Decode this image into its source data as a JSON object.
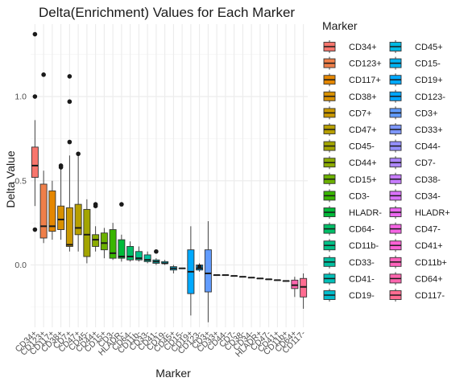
{
  "chart_data": {
    "type": "boxplot",
    "title": "Delta(Enrichment) Values for Each Marker",
    "xlabel": "Marker",
    "ylabel": "Delta Value",
    "ylim": [
      -0.37,
      1.43
    ],
    "yticks": [
      0.0,
      0.5,
      1.0
    ],
    "ytick_labels": [
      "0.0",
      "0.5",
      "1.0"
    ],
    "grid": true,
    "legend_position": "right",
    "legend_title": "Marker",
    "categories": [
      "CD34+",
      "CD123+",
      "CD117+",
      "CD38+",
      "CD7+",
      "CD47+",
      "CD45-",
      "CD44+",
      "CD15+",
      "CD3-",
      "HLADR-",
      "CD64-",
      "CD11b-",
      "CD33-",
      "CD41-",
      "CD19-",
      "CD45+",
      "CD15-",
      "CD19+",
      "CD123-",
      "CD3+",
      "CD33+",
      "CD44-",
      "CD7-",
      "CD38-",
      "CD34-",
      "HLADR+",
      "CD47-",
      "CD41+",
      "CD11b+",
      "CD64+",
      "CD117-"
    ],
    "colors": [
      "#F8766D",
      "#EF7F49",
      "#E58700",
      "#D89000",
      "#C99800",
      "#B79F00",
      "#A3A500",
      "#8BAB00",
      "#6BB100",
      "#39B600",
      "#00BA38",
      "#00BE67",
      "#00C086",
      "#00C0A0",
      "#00BFB8",
      "#00BCCC",
      "#00B9E3",
      "#00B3F2",
      "#00A9FF",
      "#00A5FF",
      "#619CFF",
      "#7D96FF",
      "#9590FF",
      "#AE87FF",
      "#C77CFF",
      "#DB72FB",
      "#EB68EF",
      "#F564E3",
      "#FC61D5",
      "#FF62BC",
      "#FF65AE",
      "#FF6C91"
    ],
    "series": [
      {
        "name": "CD34+",
        "min": 0.35,
        "q1": 0.52,
        "median": 0.59,
        "q3": 0.7,
        "max": 0.86,
        "outliers": [
          1.37,
          1.0,
          0.21
        ]
      },
      {
        "name": "CD123+",
        "min": 0.13,
        "q1": 0.16,
        "median": 0.23,
        "q3": 0.48,
        "max": 0.56,
        "outliers": [
          1.13
        ]
      },
      {
        "name": "CD117+",
        "min": 0.15,
        "q1": 0.2,
        "median": 0.23,
        "q3": 0.44,
        "max": 0.5,
        "outliers": []
      },
      {
        "name": "CD38+",
        "min": 0.15,
        "q1": 0.21,
        "median": 0.27,
        "q3": 0.35,
        "max": 0.57,
        "outliers": [
          0.59,
          0.58
        ]
      },
      {
        "name": "CD7+",
        "min": 0.08,
        "q1": 0.11,
        "median": 0.12,
        "q3": 0.34,
        "max": 0.65,
        "outliers": [
          1.12,
          0.97,
          0.73
        ]
      },
      {
        "name": "CD47+",
        "min": 0.08,
        "q1": 0.18,
        "median": 0.22,
        "q3": 0.36,
        "max": 0.66,
        "outliers": [
          0.66
        ]
      },
      {
        "name": "CD45-",
        "min": 0.01,
        "q1": 0.05,
        "median": 0.18,
        "q3": 0.33,
        "max": 0.39,
        "outliers": []
      },
      {
        "name": "CD44+",
        "min": 0.08,
        "q1": 0.11,
        "median": 0.15,
        "q3": 0.18,
        "max": 0.23,
        "outliers": [
          0.36,
          0.35
        ]
      },
      {
        "name": "CD15+",
        "min": 0.04,
        "q1": 0.09,
        "median": 0.13,
        "q3": 0.19,
        "max": 0.22,
        "outliers": []
      },
      {
        "name": "CD3-",
        "min": 0.03,
        "q1": 0.04,
        "median": 0.07,
        "q3": 0.21,
        "max": 0.25,
        "outliers": []
      },
      {
        "name": "HLADR-",
        "min": 0.02,
        "q1": 0.04,
        "median": 0.05,
        "q3": 0.15,
        "max": 0.18,
        "outliers": [
          0.36
        ]
      },
      {
        "name": "CD64-",
        "min": 0.02,
        "q1": 0.03,
        "median": 0.05,
        "q3": 0.11,
        "max": 0.14,
        "outliers": []
      },
      {
        "name": "CD11b-",
        "min": 0.02,
        "q1": 0.03,
        "median": 0.04,
        "q3": 0.08,
        "max": 0.11,
        "outliers": []
      },
      {
        "name": "CD33-",
        "min": 0.01,
        "q1": 0.02,
        "median": 0.03,
        "q3": 0.06,
        "max": 0.08,
        "outliers": []
      },
      {
        "name": "CD41-",
        "min": 0.0,
        "q1": 0.01,
        "median": 0.02,
        "q3": 0.03,
        "max": 0.04,
        "outliers": [
          0.08
        ]
      },
      {
        "name": "CD19-",
        "min": 0.0,
        "q1": 0.01,
        "median": 0.01,
        "q3": 0.02,
        "max": 0.03,
        "outliers": []
      },
      {
        "name": "CD45+",
        "min": -0.05,
        "q1": -0.03,
        "median": -0.02,
        "q3": -0.01,
        "max": 0.0,
        "outliers": []
      },
      {
        "name": "CD15-",
        "min": -0.02,
        "q1": -0.02,
        "median": -0.02,
        "q3": -0.02,
        "max": -0.02,
        "outliers": []
      },
      {
        "name": "CD19+",
        "min": -0.3,
        "q1": -0.17,
        "median": -0.04,
        "q3": 0.09,
        "max": 0.23,
        "outliers": []
      },
      {
        "name": "CD123-",
        "min": -0.04,
        "q1": -0.03,
        "median": -0.02,
        "q3": 0.0,
        "max": 0.01,
        "outliers": [
          -0.01
        ]
      },
      {
        "name": "CD3+",
        "min": -0.34,
        "q1": -0.16,
        "median": -0.05,
        "q3": 0.09,
        "max": 0.26,
        "outliers": []
      },
      {
        "name": "CD33+",
        "min": -0.06,
        "q1": -0.06,
        "median": -0.06,
        "q3": -0.06,
        "max": -0.06,
        "outliers": []
      },
      {
        "name": "CD44-",
        "min": -0.06,
        "q1": -0.06,
        "median": -0.06,
        "q3": -0.06,
        "max": -0.06,
        "outliers": []
      },
      {
        "name": "CD7-",
        "min": -0.065,
        "q1": -0.065,
        "median": -0.065,
        "q3": -0.065,
        "max": -0.065,
        "outliers": []
      },
      {
        "name": "CD38-",
        "min": -0.07,
        "q1": -0.07,
        "median": -0.07,
        "q3": -0.07,
        "max": -0.07,
        "outliers": []
      },
      {
        "name": "CD34-",
        "min": -0.075,
        "q1": -0.075,
        "median": -0.075,
        "q3": -0.075,
        "max": -0.075,
        "outliers": []
      },
      {
        "name": "HLADR+",
        "min": -0.08,
        "q1": -0.08,
        "median": -0.08,
        "q3": -0.08,
        "max": -0.08,
        "outliers": []
      },
      {
        "name": "CD47-",
        "min": -0.085,
        "q1": -0.085,
        "median": -0.085,
        "q3": -0.085,
        "max": -0.085,
        "outliers": []
      },
      {
        "name": "CD41+",
        "min": -0.09,
        "q1": -0.09,
        "median": -0.09,
        "q3": -0.09,
        "max": -0.09,
        "outliers": []
      },
      {
        "name": "CD11b+",
        "min": -0.095,
        "q1": -0.095,
        "median": -0.095,
        "q3": -0.095,
        "max": -0.095,
        "outliers": []
      },
      {
        "name": "CD64+",
        "min": -0.19,
        "q1": -0.14,
        "median": -0.12,
        "q3": -0.09,
        "max": -0.07,
        "outliers": []
      },
      {
        "name": "CD117-",
        "min": -0.26,
        "q1": -0.19,
        "median": -0.13,
        "q3": -0.08,
        "max": -0.05,
        "outliers": []
      }
    ]
  }
}
